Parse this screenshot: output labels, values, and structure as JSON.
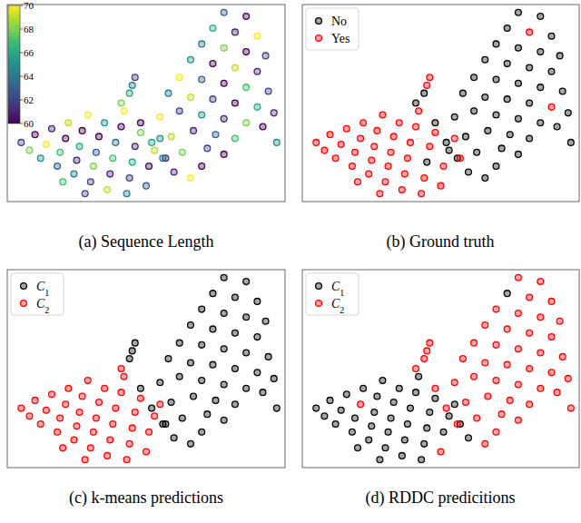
{
  "chart_data": [
    {
      "type": "scatter",
      "title": "(a) Sequence Length",
      "xlim": [
        0,
        100
      ],
      "ylim": [
        0,
        100
      ],
      "grid": false,
      "tick_labels": false,
      "marker": "circle",
      "colorbar_lim": [
        60,
        70
      ],
      "colorbar_ticks": [
        60,
        62,
        64,
        66,
        68,
        70
      ],
      "series": [
        {
          "x": [
            5,
            8,
            10,
            12,
            14,
            16,
            18,
            19,
            21,
            22,
            24,
            25,
            26,
            27,
            29,
            30,
            31,
            32,
            33,
            35,
            36,
            37,
            38,
            39,
            41,
            42,
            44,
            45,
            46,
            48,
            50,
            51,
            53,
            55,
            57,
            20,
            28,
            43,
            60,
            66,
            70,
            56,
            63,
            72,
            78,
            52,
            59,
            67,
            75,
            82,
            48,
            55,
            62,
            70,
            78,
            86,
            92,
            58,
            66,
            74,
            82,
            90,
            96,
            62,
            70,
            78,
            86,
            94,
            66,
            74,
            82,
            90,
            70,
            78,
            86,
            93,
            74,
            82,
            90,
            78,
            86,
            97,
            44,
            45,
            46,
            41
          ],
          "values": [
            30,
            26,
            34,
            22,
            29,
            37,
            18,
            25,
            32,
            40,
            14,
            21,
            28,
            36,
            44,
            10,
            18,
            25,
            33,
            40,
            6,
            14,
            22,
            30,
            38,
            46,
            12,
            20,
            28,
            35,
            8,
            18,
            26,
            32,
            22,
            10,
            4,
            4,
            15,
            12,
            18,
            22,
            25,
            27,
            24,
            30,
            33,
            36,
            34,
            32,
            40,
            43,
            46,
            44,
            42,
            40,
            38,
            55,
            53,
            52,
            50,
            48,
            45,
            63,
            62,
            60,
            58,
            56,
            72,
            70,
            68,
            66,
            80,
            78,
            76,
            74,
            88,
            86,
            84,
            96,
            94,
            30,
            55,
            59,
            63,
            50
          ],
          "color_values": [
            62,
            68,
            60,
            65,
            70,
            61,
            63,
            67,
            60,
            69,
            64,
            61,
            66,
            60,
            70,
            62,
            68,
            63,
            60,
            65,
            69,
            61,
            67,
            64,
            60,
            70,
            62,
            66,
            61,
            68,
            63,
            60,
            69,
            65,
            61,
            67,
            62,
            64,
            61,
            70,
            60,
            64,
            68,
            62,
            60,
            66,
            69,
            61,
            63,
            67,
            60,
            70,
            62,
            65,
            61,
            68,
            60,
            64,
            69,
            62,
            60,
            66,
            61,
            70,
            63,
            60,
            67,
            62,
            65,
            60,
            69,
            61,
            64,
            68,
            60,
            62,
            66,
            61,
            70,
            63,
            60,
            65,
            66,
            64,
            62,
            68
          ]
        }
      ]
    },
    {
      "type": "scatter",
      "title": "(b) Ground truth",
      "xlim": [
        0,
        100
      ],
      "ylim": [
        0,
        100
      ],
      "grid": false,
      "tick_labels": false,
      "marker": "circle",
      "legend": "upper left",
      "series": [
        {
          "name": "No",
          "color": "#000000",
          "x": [
            60,
            66,
            70,
            56,
            63,
            72,
            78,
            52,
            59,
            67,
            75,
            82,
            48,
            55,
            62,
            70,
            78,
            86,
            92,
            58,
            66,
            74,
            82,
            96,
            62,
            70,
            78,
            86,
            94,
            66,
            74,
            82,
            90,
            70,
            78,
            86,
            93,
            74,
            90,
            78,
            86,
            97,
            45,
            53,
            44,
            41
          ],
          "values": [
            15,
            12,
            18,
            22,
            25,
            27,
            24,
            30,
            33,
            36,
            34,
            32,
            40,
            43,
            46,
            44,
            42,
            40,
            38,
            55,
            53,
            52,
            50,
            45,
            63,
            62,
            60,
            58,
            56,
            72,
            70,
            68,
            66,
            80,
            78,
            76,
            74,
            88,
            84,
            96,
            94,
            30,
            20,
            26,
            55,
            50
          ]
        },
        {
          "name": "Yes",
          "color": "#ff0000",
          "x": [
            5,
            8,
            10,
            12,
            14,
            16,
            18,
            19,
            21,
            22,
            24,
            25,
            26,
            27,
            29,
            30,
            31,
            32,
            33,
            35,
            36,
            37,
            38,
            39,
            41,
            42,
            44,
            46,
            48,
            50,
            51,
            55,
            57,
            20,
            28,
            43,
            82,
            90,
            45,
            46
          ],
          "values": [
            30,
            26,
            34,
            22,
            29,
            37,
            18,
            25,
            32,
            40,
            14,
            21,
            28,
            36,
            44,
            10,
            18,
            25,
            33,
            40,
            6,
            14,
            22,
            30,
            38,
            46,
            12,
            28,
            35,
            8,
            18,
            32,
            22,
            10,
            4,
            4,
            86,
            48,
            59,
            63
          ]
        }
      ]
    },
    {
      "type": "scatter",
      "title": "(c) k-means predictions",
      "xlim": [
        0,
        100
      ],
      "ylim": [
        0,
        100
      ],
      "grid": false,
      "tick_labels": false,
      "marker": "circle",
      "legend": "upper left",
      "series": [
        {
          "name": "C1",
          "color": "#000000",
          "x": [
            60,
            66,
            70,
            56,
            63,
            72,
            78,
            52,
            59,
            67,
            75,
            82,
            48,
            55,
            62,
            70,
            78,
            86,
            92,
            58,
            66,
            74,
            82,
            90,
            96,
            62,
            70,
            78,
            86,
            94,
            66,
            74,
            82,
            90,
            70,
            78,
            86,
            93,
            74,
            82,
            90,
            78,
            86,
            97,
            44,
            45,
            46,
            57
          ],
          "values": [
            15,
            12,
            18,
            22,
            25,
            27,
            24,
            30,
            33,
            36,
            34,
            32,
            40,
            43,
            46,
            44,
            42,
            40,
            38,
            55,
            53,
            52,
            50,
            48,
            45,
            63,
            62,
            60,
            58,
            56,
            72,
            70,
            68,
            66,
            80,
            78,
            76,
            74,
            88,
            86,
            84,
            96,
            94,
            30,
            55,
            59,
            63,
            22
          ]
        },
        {
          "name": "C2",
          "color": "#ff0000",
          "x": [
            5,
            8,
            10,
            12,
            14,
            16,
            18,
            19,
            21,
            22,
            24,
            25,
            26,
            27,
            29,
            30,
            31,
            32,
            33,
            35,
            36,
            37,
            38,
            39,
            41,
            42,
            44,
            45,
            46,
            48,
            50,
            51,
            53,
            55,
            20,
            28,
            43,
            41
          ],
          "values": [
            30,
            26,
            34,
            22,
            29,
            37,
            18,
            25,
            32,
            40,
            14,
            21,
            28,
            36,
            44,
            10,
            18,
            25,
            33,
            40,
            6,
            14,
            22,
            30,
            38,
            46,
            12,
            20,
            28,
            35,
            8,
            18,
            26,
            32,
            10,
            4,
            4,
            50
          ]
        }
      ]
    },
    {
      "type": "scatter",
      "title": "(d) RDDC predicitions",
      "xlim": [
        0,
        100
      ],
      "ylim": [
        0,
        100
      ],
      "grid": false,
      "tick_labels": false,
      "marker": "circle",
      "legend": "upper left",
      "series": [
        {
          "name": "C1",
          "color": "#000000",
          "x": [
            5,
            8,
            10,
            12,
            14,
            16,
            18,
            19,
            22,
            24,
            25,
            26,
            27,
            29,
            30,
            31,
            32,
            33,
            35,
            36,
            37,
            38,
            39,
            41,
            42,
            44,
            45,
            46,
            48,
            51,
            53,
            55,
            57,
            20,
            28,
            43,
            74,
            60
          ],
          "values": [
            30,
            26,
            34,
            22,
            29,
            37,
            18,
            25,
            40,
            14,
            21,
            28,
            36,
            44,
            10,
            18,
            25,
            33,
            40,
            6,
            14,
            22,
            30,
            38,
            46,
            12,
            20,
            28,
            35,
            18,
            26,
            32,
            22,
            10,
            4,
            4,
            88,
            15
          ]
        },
        {
          "name": "C2",
          "color": "#ff0000",
          "x": [
            66,
            70,
            56,
            63,
            72,
            78,
            52,
            59,
            67,
            75,
            82,
            48,
            55,
            62,
            70,
            78,
            86,
            92,
            58,
            66,
            74,
            82,
            90,
            96,
            62,
            70,
            78,
            86,
            94,
            66,
            74,
            82,
            90,
            70,
            78,
            86,
            93,
            82,
            90,
            78,
            86,
            97,
            50,
            21,
            44,
            45,
            46,
            41
          ],
          "values": [
            12,
            18,
            22,
            25,
            27,
            24,
            30,
            33,
            36,
            34,
            32,
            40,
            43,
            46,
            44,
            42,
            40,
            38,
            55,
            53,
            52,
            50,
            48,
            45,
            63,
            62,
            60,
            58,
            56,
            72,
            70,
            68,
            66,
            80,
            78,
            76,
            74,
            86,
            84,
            96,
            94,
            30,
            8,
            32,
            55,
            59,
            63,
            50
          ]
        }
      ]
    }
  ]
}
